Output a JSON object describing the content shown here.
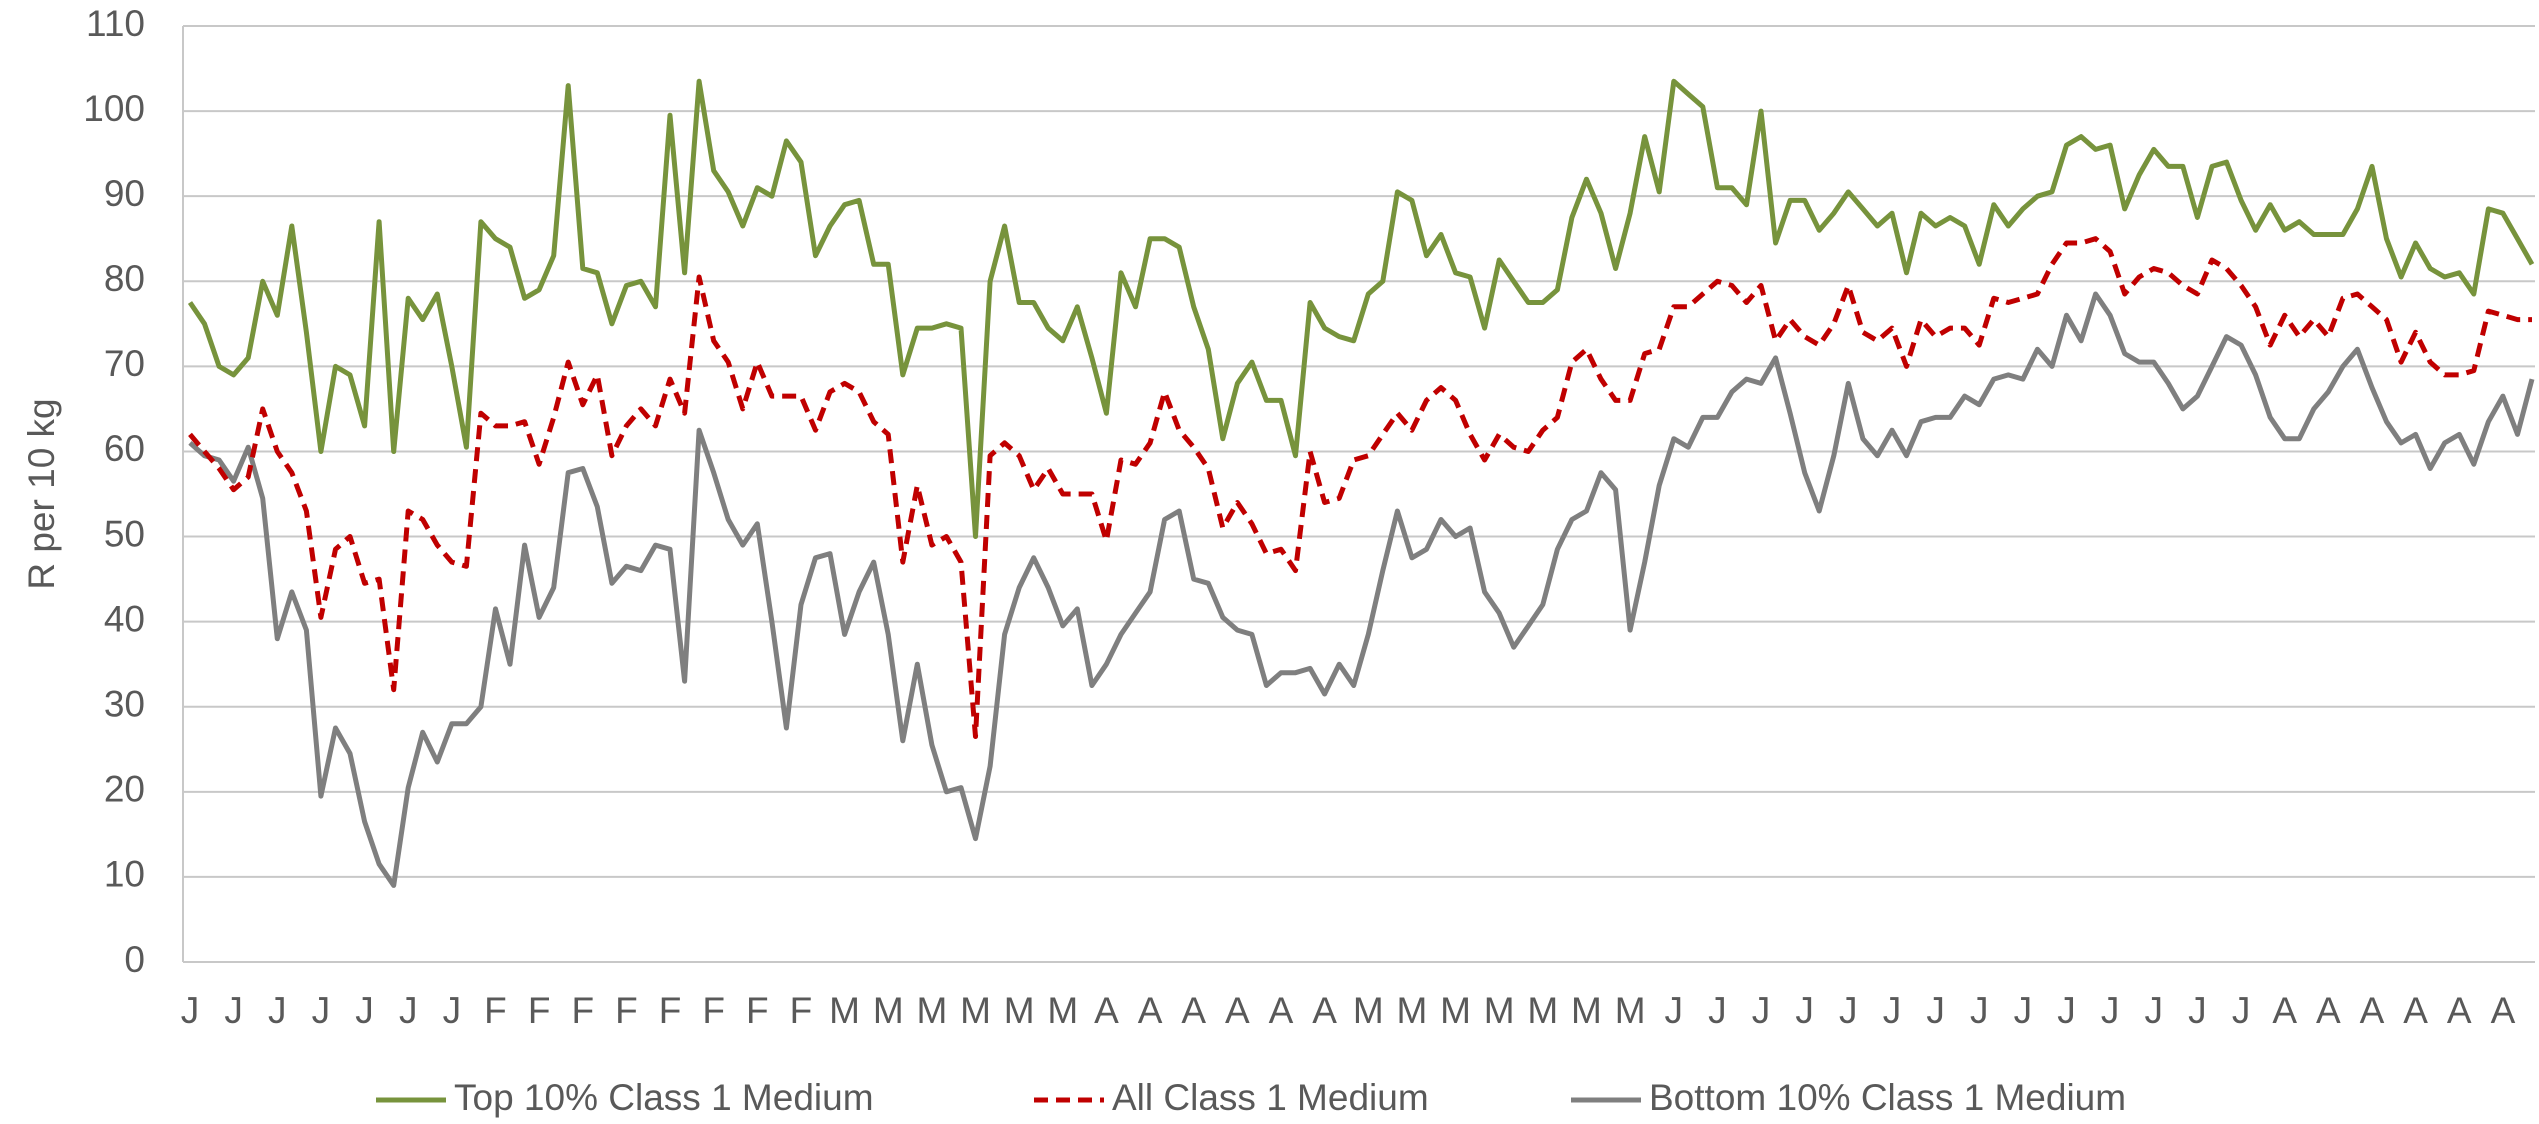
{
  "chart_data": {
    "type": "line",
    "y_label": "R per 10 kg",
    "categories": [
      "J",
      null,
      null,
      "J",
      null,
      null,
      "J",
      null,
      null,
      "J",
      null,
      null,
      "J",
      null,
      null,
      "J",
      null,
      null,
      "J",
      null,
      null,
      "F",
      null,
      null,
      "F",
      null,
      null,
      "F",
      null,
      null,
      "F",
      null,
      null,
      "F",
      null,
      null,
      "F",
      null,
      null,
      "F",
      null,
      null,
      "F",
      null,
      null,
      "M",
      null,
      null,
      "M",
      null,
      null,
      "M",
      null,
      null,
      "M",
      null,
      null,
      "M",
      null,
      null,
      "M",
      null,
      null,
      "A",
      null,
      null,
      "A",
      null,
      null,
      "A",
      null,
      null,
      "A",
      null,
      null,
      "A",
      null,
      null,
      "A",
      null,
      null,
      "M",
      null,
      null,
      "M",
      null,
      null,
      "M",
      null,
      null,
      "M",
      null,
      null,
      "M",
      null,
      null,
      "M",
      null,
      null,
      "M",
      null,
      null,
      "J",
      null,
      null,
      "J",
      null,
      null,
      "J",
      null,
      null,
      "J",
      null,
      null,
      "J",
      null,
      null,
      "J",
      null,
      null,
      "J",
      null,
      null,
      "J",
      null,
      null,
      "J",
      null,
      null,
      "J",
      null,
      null,
      "J",
      null,
      null,
      "J",
      null,
      null,
      "J",
      null,
      null,
      "J",
      null,
      null,
      "A",
      null,
      null,
      "A",
      null,
      null,
      "A",
      null,
      null,
      "A",
      null,
      null,
      "A",
      null,
      null,
      "A",
      null,
      null
    ],
    "series": [
      {
        "name": "Top 10% Class 1 Medium",
        "color": "#77933c",
        "dash": false,
        "values": [
          77.5,
          75,
          70,
          69,
          71,
          80,
          76,
          86.5,
          74,
          60,
          70,
          69,
          63,
          87,
          60,
          78,
          75.5,
          78.5,
          70,
          60.5,
          87,
          85,
          84,
          78,
          79,
          83,
          103,
          81.5,
          81,
          75,
          79.5,
          80,
          77,
          99.5,
          81,
          103.5,
          93,
          90.5,
          86.5,
          91,
          90,
          96.5,
          94,
          83,
          86.5,
          89,
          89.5,
          82,
          82,
          69,
          74.5,
          74.5,
          75,
          74.5,
          50,
          80,
          86.5,
          77.5,
          77.5,
          74.5,
          73,
          77,
          71,
          64.5,
          81,
          77,
          85,
          85,
          84,
          77,
          72,
          61.5,
          68,
          70.5,
          66,
          66,
          59.5,
          77.5,
          74.5,
          73.5,
          73,
          78.5,
          80,
          90.5,
          89.5,
          83,
          85.5,
          81,
          80.5,
          74.5,
          82.5,
          80,
          77.5,
          77.5,
          79,
          87.5,
          92,
          88,
          81.5,
          88,
          97,
          90.5,
          103.5,
          102,
          100.5,
          91,
          91,
          89,
          100,
          84.5,
          89.5,
          89.5,
          86,
          88,
          90.5,
          88.5,
          86.5,
          88,
          81,
          88,
          86.5,
          87.5,
          86.5,
          82,
          89,
          86.5,
          88.5,
          90,
          90.5,
          96,
          97,
          95.5,
          96,
          88.5,
          92.5,
          95.5,
          93.5,
          93.5,
          87.5,
          93.5,
          94,
          89.5,
          86,
          89,
          86,
          87,
          85.5,
          85.5,
          85.5,
          88.5,
          93.5,
          85,
          80.5,
          84.5,
          81.5,
          80.5,
          81,
          78.5,
          88.5,
          88,
          85,
          82
        ]
      },
      {
        "name": "All Class 1 Medium",
        "color": "#c00000",
        "dash": true,
        "values": [
          62,
          60,
          58,
          55.5,
          57,
          65,
          60,
          57.5,
          53,
          40.5,
          48.5,
          50,
          44.5,
          45,
          32,
          53,
          52,
          49,
          47,
          46.5,
          64.5,
          63,
          63,
          63.5,
          58.5,
          64,
          70.5,
          65.5,
          69,
          59.5,
          63,
          65,
          63,
          68.5,
          64.5,
          80.5,
          73,
          70.5,
          65,
          70.5,
          66.5,
          66.5,
          66.5,
          62.5,
          67,
          68,
          67,
          63.5,
          62,
          47,
          56,
          49,
          50,
          47,
          26.5,
          59.5,
          61,
          59.5,
          55.5,
          58,
          55,
          55,
          55,
          49.5,
          59,
          58.5,
          61,
          67,
          62.5,
          60.5,
          58,
          51,
          54,
          51.5,
          48,
          48.5,
          46,
          60,
          54,
          54.5,
          59,
          59.5,
          62,
          64.5,
          62.5,
          66,
          67.5,
          66,
          62,
          59,
          62,
          60.5,
          60,
          62.5,
          64,
          70.5,
          72,
          68.5,
          66,
          66,
          71.5,
          72,
          77,
          77,
          78.5,
          80,
          79.5,
          77.5,
          79.5,
          73,
          75.5,
          73.5,
          72.5,
          75,
          79.5,
          74,
          73,
          74.5,
          70,
          75.5,
          73.5,
          74.5,
          74.5,
          72.5,
          78,
          77.5,
          78,
          78.5,
          82,
          84.5,
          84.5,
          85,
          83.5,
          78.5,
          80.5,
          81.5,
          81,
          79.5,
          78.5,
          82.5,
          81.5,
          79.5,
          77,
          72.5,
          76,
          73.5,
          75.5,
          73.5,
          78,
          78.5,
          77,
          75.5,
          70.5,
          74,
          70.5,
          69,
          69,
          69.5,
          76.5,
          76,
          75.5,
          75.5
        ]
      },
      {
        "name": "Bottom 10% Class 1 Medium",
        "color": "#7f7f7f",
        "dash": false,
        "values": [
          61,
          59.5,
          59,
          56.5,
          60.5,
          54.5,
          38,
          43.5,
          39,
          19.5,
          27.5,
          24.5,
          16.5,
          11.5,
          9,
          20.5,
          27,
          23.5,
          28,
          28,
          30,
          41.5,
          35,
          49,
          40.5,
          44,
          57.5,
          58,
          53.5,
          44.5,
          46.5,
          46,
          49,
          48.5,
          33,
          62.5,
          57.5,
          52,
          49,
          51.5,
          40,
          27.5,
          42,
          47.5,
          48,
          38.5,
          43.5,
          47,
          38.5,
          26,
          35,
          25.5,
          20,
          20.5,
          14.5,
          23,
          38.5,
          44,
          47.5,
          44,
          39.5,
          41.5,
          32.5,
          35,
          38.5,
          41,
          43.5,
          52,
          53,
          45,
          44.5,
          40.5,
          39,
          38.5,
          32.5,
          34,
          34,
          34.5,
          31.5,
          35,
          32.5,
          38.5,
          46,
          53,
          47.5,
          48.5,
          52,
          50,
          51,
          43.5,
          41,
          37,
          39.5,
          42,
          48.5,
          52,
          53,
          57.5,
          55.5,
          39,
          47,
          56,
          61.5,
          60.5,
          64,
          64,
          67,
          68.5,
          68,
          71,
          64.5,
          57.5,
          53,
          59.5,
          68,
          61.5,
          59.5,
          62.5,
          59.5,
          63.5,
          64,
          64,
          66.5,
          65.5,
          68.5,
          69,
          68.5,
          72,
          70,
          76,
          73,
          78.5,
          76,
          71.5,
          70.5,
          70.5,
          68,
          65,
          66.5,
          70,
          73.5,
          72.5,
          69,
          64,
          61.5,
          61.5,
          65,
          67,
          70,
          72,
          67.5,
          63.5,
          61,
          62,
          58,
          61,
          62,
          58.5,
          63.5,
          66.5,
          62,
          68.5
        ]
      }
    ],
    "ylim": [
      0,
      110
    ],
    "yticks": [
      0,
      10,
      20,
      30,
      40,
      50,
      60,
      70,
      80,
      90,
      100,
      110
    ],
    "grid": true,
    "legend": "bottom"
  }
}
